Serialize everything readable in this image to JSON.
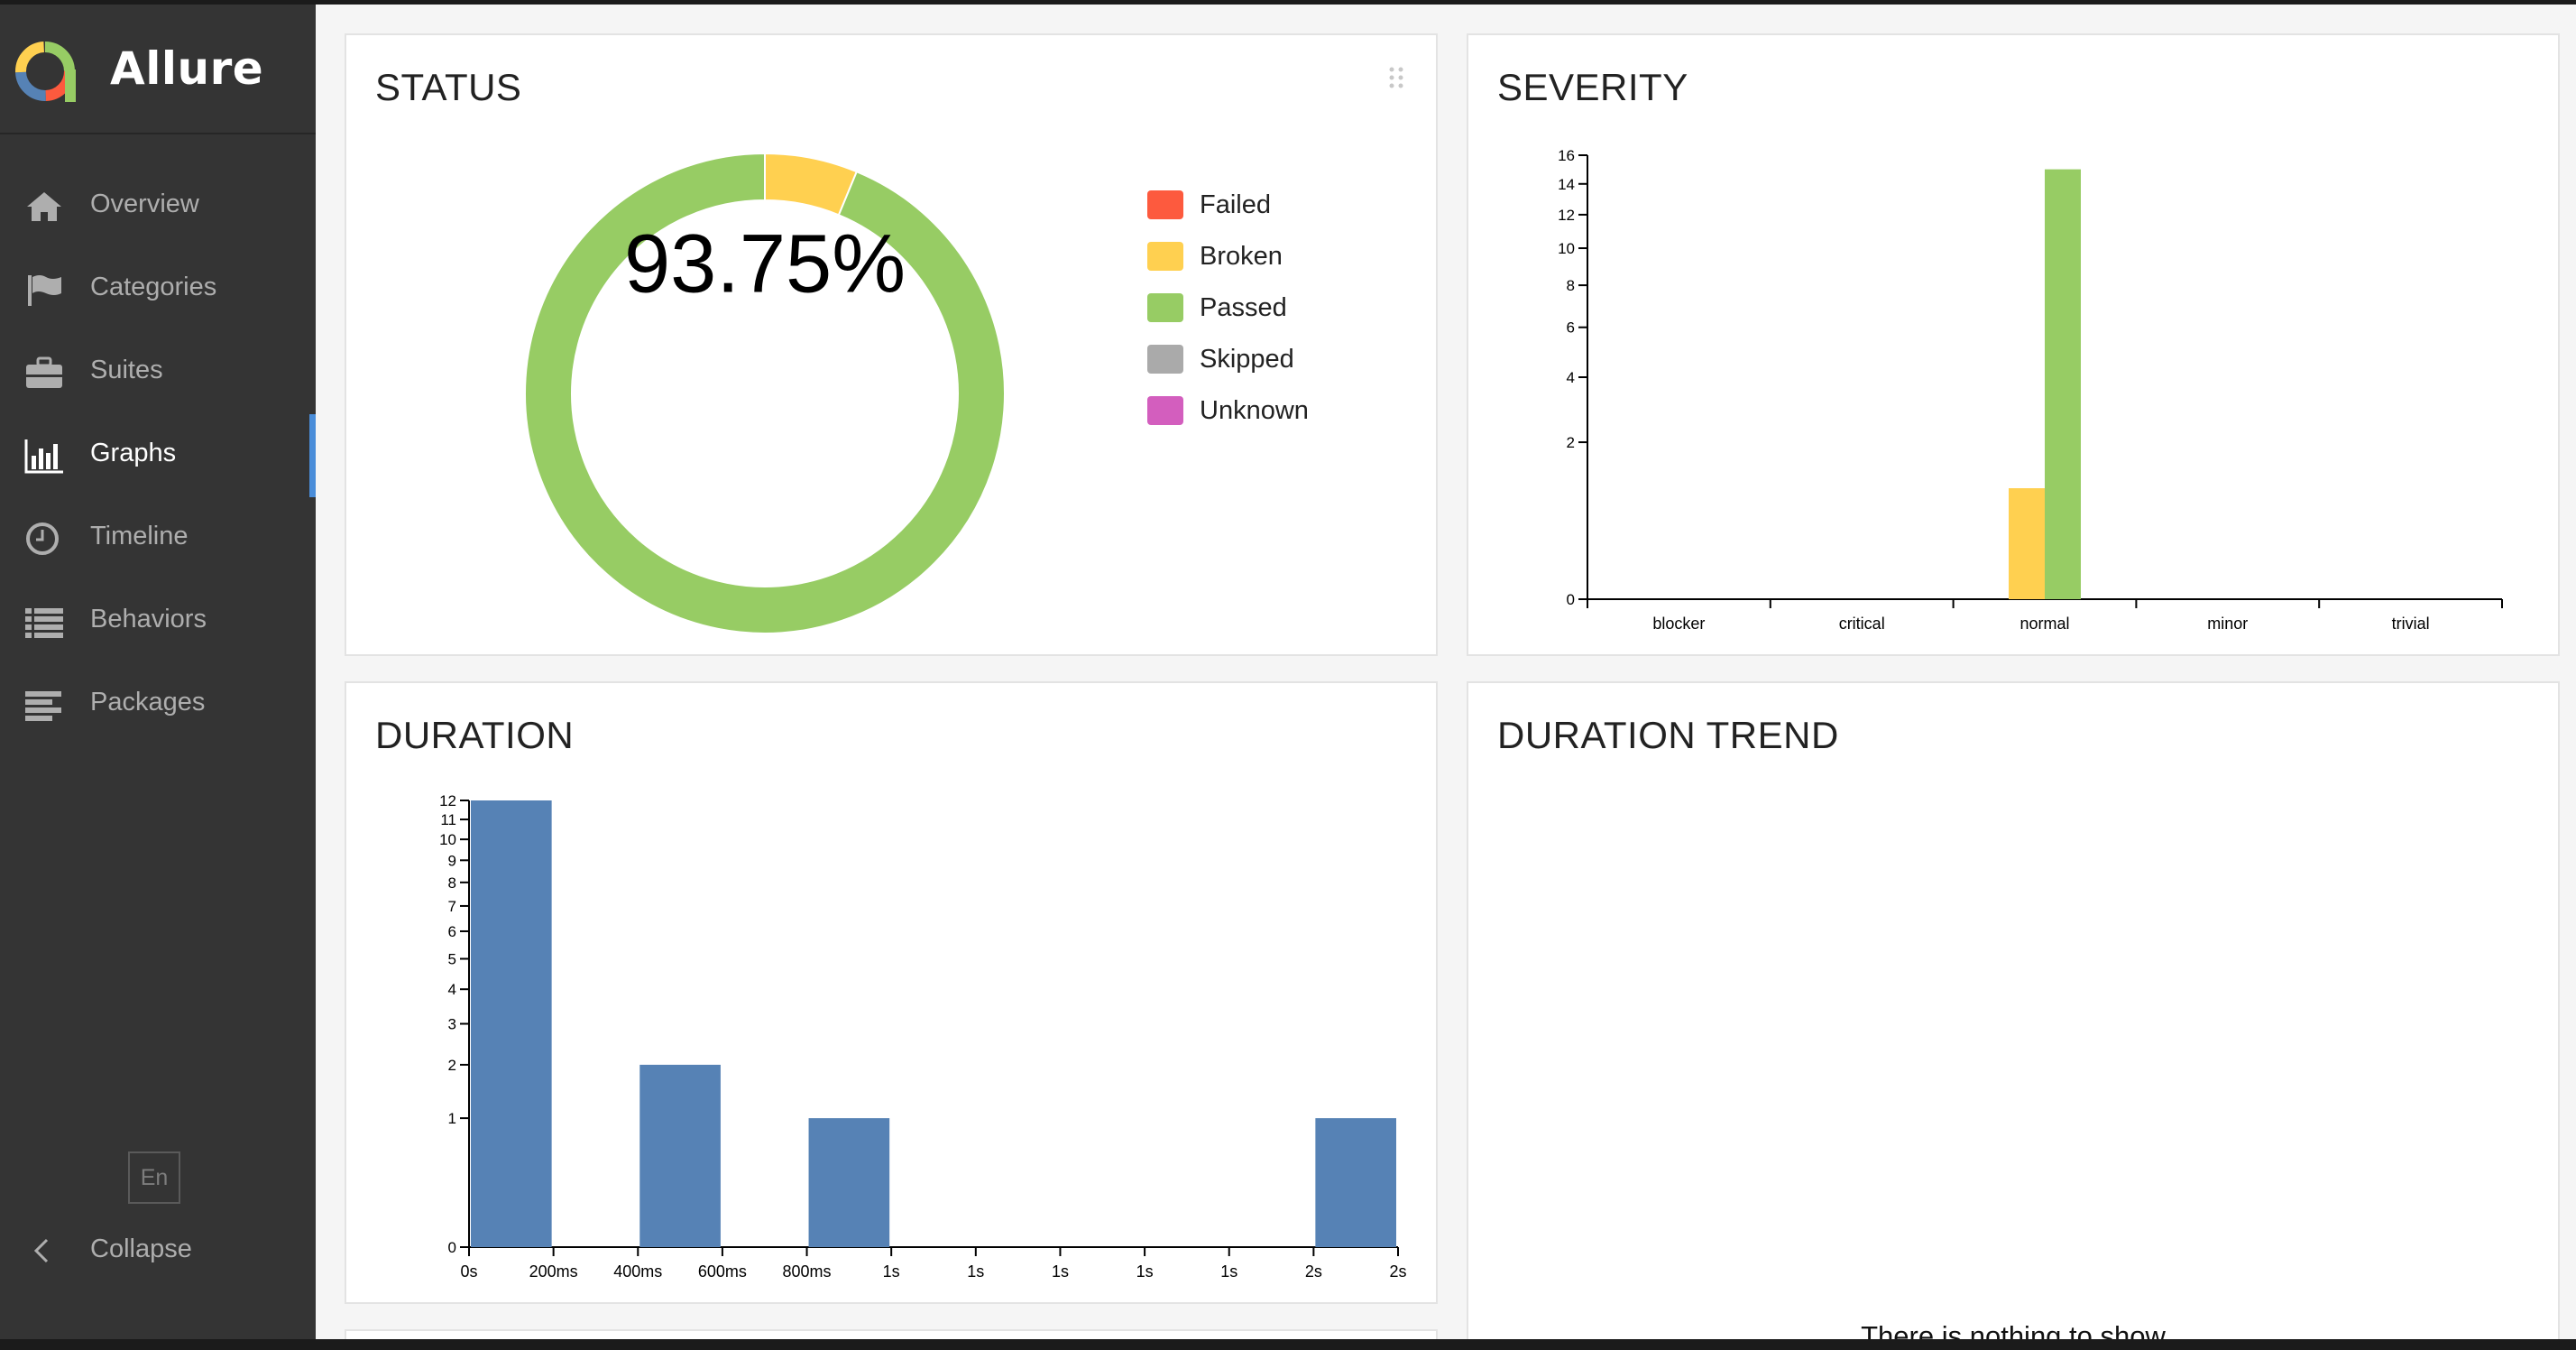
{
  "app": {
    "name": "Allure"
  },
  "sidebar": {
    "items": [
      {
        "label": "Overview",
        "icon": "home-icon",
        "active": false
      },
      {
        "label": "Categories",
        "icon": "flag-icon",
        "active": false
      },
      {
        "label": "Suites",
        "icon": "briefcase-icon",
        "active": false
      },
      {
        "label": "Graphs",
        "icon": "bar-chart-icon",
        "active": true
      },
      {
        "label": "Timeline",
        "icon": "clock-icon",
        "active": false
      },
      {
        "label": "Behaviors",
        "icon": "list-icon",
        "active": false
      },
      {
        "label": "Packages",
        "icon": "align-left-icon",
        "active": false
      }
    ],
    "language": "En",
    "collapse_label": "Collapse"
  },
  "widgets": {
    "status": {
      "title": "STATUS",
      "percent_label": "93.75%",
      "legend": [
        {
          "label": "Failed",
          "color": "#fd5a3e"
        },
        {
          "label": "Broken",
          "color": "#ffd050"
        },
        {
          "label": "Passed",
          "color": "#97cc64"
        },
        {
          "label": "Skipped",
          "color": "#aaaaaa"
        },
        {
          "label": "Unknown",
          "color": "#d35ebe"
        }
      ]
    },
    "severity": {
      "title": "SEVERITY"
    },
    "duration": {
      "title": "DURATION"
    },
    "duration_trend": {
      "title": "DURATION TREND",
      "empty_message": "There is nothing to show"
    }
  },
  "chart_data": [
    {
      "type": "pie",
      "chart": "status",
      "categories": [
        "Failed",
        "Broken",
        "Passed",
        "Skipped",
        "Unknown"
      ],
      "values": [
        0,
        1,
        15,
        0,
        0
      ],
      "center_label": "93.75%"
    },
    {
      "type": "bar",
      "chart": "severity",
      "categories": [
        "blocker",
        "critical",
        "normal",
        "minor",
        "trivial"
      ],
      "series": [
        {
          "values": [
            0,
            0,
            1,
            0,
            0
          ],
          "color": "#ffd050"
        },
        {
          "values": [
            0,
            0,
            15,
            0,
            0
          ],
          "color": "#97cc64"
        }
      ],
      "y_scale": "sqrt",
      "y_ticks": [
        0,
        2,
        4,
        6,
        8,
        10,
        12,
        14,
        16
      ],
      "ylim": [
        0,
        16
      ]
    },
    {
      "type": "bar",
      "chart": "duration",
      "x_tick_labels": [
        "0s",
        "200ms",
        "400ms",
        "600ms",
        "800ms",
        "1s",
        "1s",
        "1s",
        "1s",
        "1s",
        "2s",
        "2s"
      ],
      "values": [
        12,
        0,
        2,
        0,
        1,
        0,
        0,
        0,
        0,
        0,
        1
      ],
      "color": "#5682b5",
      "y_scale": "sqrt",
      "y_ticks": [
        0,
        1,
        2,
        3,
        4,
        5,
        6,
        7,
        8,
        9,
        10,
        11,
        12
      ],
      "ylim": [
        0,
        12
      ]
    }
  ]
}
